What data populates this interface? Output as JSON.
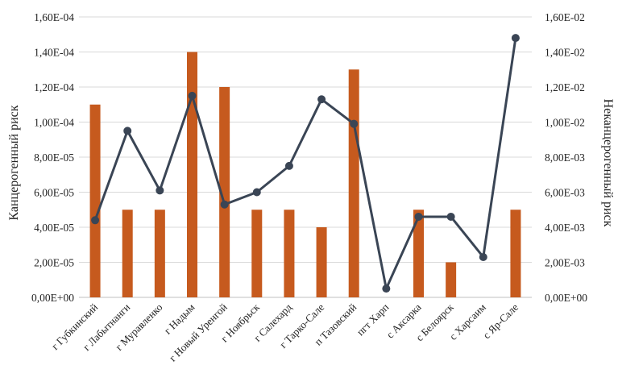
{
  "chart_data": {
    "type": "bar",
    "categories": [
      "г Губкинский",
      "г Лабытнанги",
      "г Муравленко",
      "г Надым",
      "г Новый Уренгой",
      "г Ноябрьск",
      "г Салехард",
      "г Тарко-Сале",
      "п Тазовский",
      "пгт Харп",
      "с Аксарка",
      "с Белоярск",
      "с Харсаим",
      "с Яр-Сале"
    ],
    "series": [
      {
        "type": "bar",
        "axis": "left",
        "color": "#C65A1E",
        "values": [
          0.00011,
          5e-05,
          5e-05,
          0.00014,
          0.00012,
          5e-05,
          5e-05,
          4e-05,
          0.00013,
          null,
          5e-05,
          2e-05,
          null,
          5e-05
        ]
      },
      {
        "type": "line",
        "axis": "right",
        "color": "#3A4555",
        "values": [
          0.0044,
          0.0095,
          0.0061,
          0.0115,
          0.0053,
          0.006,
          0.0075,
          0.0113,
          0.0099,
          0.0005,
          0.0046,
          0.0046,
          0.0023,
          0.0148
        ]
      }
    ],
    "ylabel": "Канцерогенный риск",
    "y2label": "Неканцерогенный риск",
    "ylim": [
      0,
      0.00016
    ],
    "y2lim": [
      0,
      0.016
    ],
    "yticks": [
      "0,00E+00",
      "2,00E-05",
      "4,00E-05",
      "6,00E-05",
      "8,00E-05",
      "1,00E-04",
      "1,20E-04",
      "1,40E-04",
      "1,60E-04"
    ],
    "y2ticks": [
      "0,00E+00",
      "2,00E-03",
      "4,00E-03",
      "6,00E-03",
      "8,00E-03",
      "1,00E-02",
      "1,20E-02",
      "1,40E-02",
      "1,60E-02"
    ],
    "grid": true
  }
}
